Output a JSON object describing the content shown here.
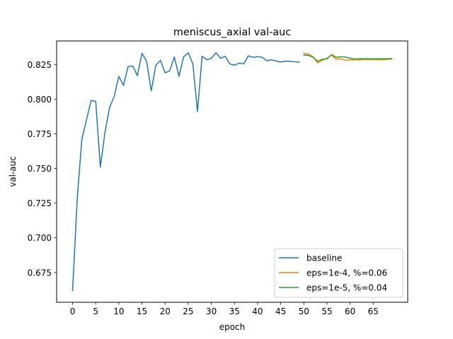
{
  "chart_data": {
    "type": "line",
    "title": "meniscus_axial val-auc",
    "xlabel": "epoch",
    "ylabel": "val-auc",
    "xlim": [
      -3.45,
      72.45
    ],
    "ylim": [
      0.6535,
      0.842
    ],
    "xticks": [
      0,
      5,
      10,
      15,
      20,
      25,
      30,
      35,
      40,
      45,
      50,
      55,
      60,
      65
    ],
    "yticks": [
      0.675,
      0.7,
      0.725,
      0.75,
      0.775,
      0.8,
      0.825
    ],
    "ytick_labels": [
      "0.675",
      "0.700",
      "0.725",
      "0.750",
      "0.775",
      "0.800",
      "0.825"
    ],
    "grid": false,
    "legend_position": "lower right",
    "series": [
      {
        "name": "baseline",
        "color": "#1f77b4",
        "x_start": 0,
        "values": [
          0.662,
          0.728,
          0.771,
          0.785,
          0.799,
          0.7985,
          0.751,
          0.776,
          0.794,
          0.802,
          0.8165,
          0.81,
          0.8235,
          0.824,
          0.817,
          0.833,
          0.8275,
          0.806,
          0.8245,
          0.828,
          0.819,
          0.8205,
          0.8305,
          0.8165,
          0.8305,
          0.8335,
          0.8255,
          0.791,
          0.831,
          0.8285,
          0.8295,
          0.8335,
          0.8295,
          0.831,
          0.8255,
          0.8245,
          0.826,
          0.8255,
          0.8312,
          0.8302,
          0.8307,
          0.8302,
          0.8278,
          0.8284,
          0.8275,
          0.8268,
          0.8274,
          0.8273,
          0.827,
          0.8267
        ]
      },
      {
        "name": "eps=1e-4, %=0.06",
        "color": "#ff7f0e",
        "x_start": 50,
        "values": [
          0.833,
          0.8325,
          0.8305,
          0.8262,
          0.8282,
          0.8295,
          0.8318,
          0.8288,
          0.8292,
          0.8281,
          0.8283,
          0.8285,
          0.8283,
          0.8286,
          0.8287,
          0.8286,
          0.8284,
          0.8285,
          0.8287,
          0.8289
        ]
      },
      {
        "name": "eps=1e-5, %=0.04",
        "color": "#2ca02c",
        "x_start": 50,
        "values": [
          0.8318,
          0.8316,
          0.8302,
          0.8273,
          0.8288,
          0.8291,
          0.8322,
          0.8302,
          0.8306,
          0.8304,
          0.8296,
          0.8289,
          0.8292,
          0.8292,
          0.8292,
          0.8291,
          0.8292,
          0.8292,
          0.8292,
          0.8293
        ]
      }
    ]
  }
}
